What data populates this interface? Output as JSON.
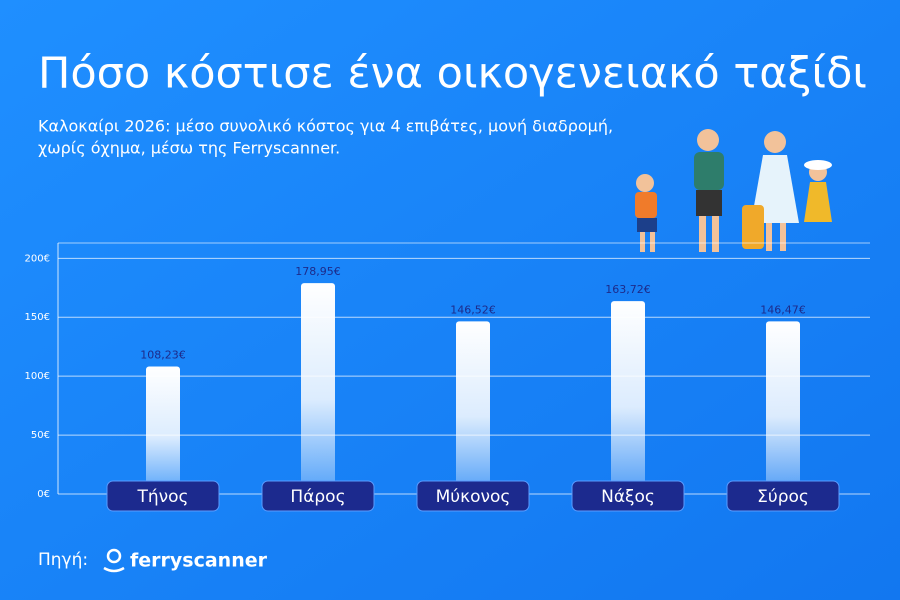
{
  "chart_data": {
    "type": "bar",
    "title": "Πόσο κόστισε ένα οικογενειακό ταξίδι",
    "subtitle": [
      "Καλοκαίρι 2026: μέσο συνολικό κόστος για 4 επιβάτες, μονή διαδρομή,",
      "χωρίς όχημα, μέσω της Ferryscanner."
    ],
    "categories": [
      "Τήνος",
      "Πάρος",
      "Μύκονος",
      "Νάξος",
      "Σύρος"
    ],
    "values": [
      108.23,
      178.95,
      146.52,
      163.72,
      146.47
    ],
    "value_labels": [
      "108,23€",
      "178,95€",
      "146,52€",
      "163,72€",
      "146,47€"
    ],
    "color": "#ffffff",
    "ylim": [
      0,
      213
    ],
    "yticks": [
      {
        "value": 0,
        "label": "0€"
      },
      {
        "value": 50,
        "label": "50€"
      },
      {
        "value": 100,
        "label": "100€"
      },
      {
        "value": 150,
        "label": "150€"
      },
      {
        "value": 200,
        "label": "200€"
      }
    ],
    "grid": true,
    "source_label": "Πηγή:",
    "source": "ferryscanner"
  }
}
